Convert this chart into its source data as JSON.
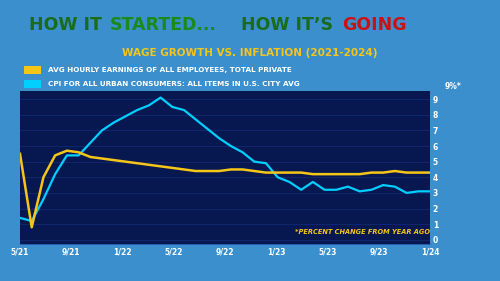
{
  "title_white_part1": "HOW IT ",
  "title_green_part": "STARTED...",
  "title_white_part2": " HOW IT’S ",
  "title_red_part": "GOING",
  "subtitle": "WAGE GROWTH VS. INFLATION (2021-2024)",
  "legend1": "AVG HOURLY EARNINGS OF ALL EMPLOYEES, TOTAL PRIVATE",
  "legend2": "CPI FOR ALL URBAN CONSUMERS: ALL ITEMS IN U.S. CITY AVG",
  "annotation": "*PERCENT CHANGE FROM YEAR AGO",
  "x_labels": [
    "5/21",
    "9/21",
    "1/22",
    "5/22",
    "9/22",
    "1/23",
    "5/23",
    "9/23",
    "1/24"
  ],
  "y_ticks": [
    0,
    1,
    2,
    3,
    4,
    5,
    6,
    7,
    8,
    9
  ],
  "ylim": [
    -0.3,
    9.5
  ],
  "bg_outer": "#3a8fcc",
  "bg_chart": "#071850",
  "bg_title_bar": "#111111",
  "bg_title_white": "#ffffff",
  "wage_color": "#f5c518",
  "cpi_color": "#00cfff",
  "title_green": "#1a8a1a",
  "title_red": "#cc1111",
  "subtitle_color": "#f5c518",
  "wage_data": [
    5.5,
    0.8,
    4.0,
    5.4,
    5.7,
    5.6,
    5.3,
    5.2,
    5.1,
    5.0,
    4.9,
    4.8,
    4.7,
    4.6,
    4.5,
    4.4,
    4.4,
    4.4,
    4.5,
    4.5,
    4.4,
    4.3,
    4.3,
    4.3,
    4.3,
    4.2,
    4.2,
    4.2,
    4.2,
    4.2,
    4.3,
    4.3,
    4.4,
    4.3,
    4.3,
    4.3
  ],
  "cpi_data": [
    1.4,
    1.2,
    2.6,
    4.2,
    5.4,
    5.4,
    6.2,
    7.0,
    7.5,
    7.9,
    8.3,
    8.6,
    9.1,
    8.5,
    8.3,
    7.7,
    7.1,
    6.5,
    6.0,
    5.6,
    5.0,
    4.9,
    4.0,
    3.7,
    3.2,
    3.7,
    3.2,
    3.2,
    3.4,
    3.1,
    3.2,
    3.5,
    3.4,
    3.0,
    3.1,
    3.1
  ]
}
